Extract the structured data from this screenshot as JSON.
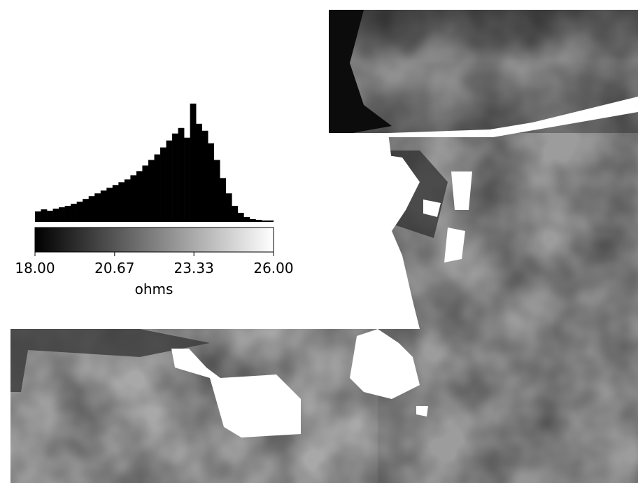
{
  "chart_data": {
    "type": "histogram",
    "bins": [
      18,
      18.2,
      18.4,
      18.6,
      18.8,
      19,
      19.2,
      19.4,
      19.6,
      19.8,
      20,
      20.2,
      20.4,
      20.6,
      20.8,
      21,
      21.2,
      21.4,
      21.6,
      21.8,
      22,
      22.2,
      22.4,
      22.6,
      22.8,
      23,
      23.2,
      23.4,
      23.6,
      23.8,
      24,
      24.2,
      24.4,
      24.6,
      24.8,
      25,
      25.2,
      25.4,
      25.6,
      25.8,
      26
    ],
    "values": [
      14,
      17,
      15,
      18,
      20,
      22,
      25,
      28,
      32,
      36,
      40,
      44,
      48,
      52,
      56,
      60,
      66,
      72,
      80,
      88,
      96,
      106,
      116,
      126,
      134,
      120,
      169,
      140,
      130,
      112,
      88,
      62,
      40,
      22,
      12,
      6,
      3,
      2,
      1,
      1
    ],
    "color": "#000000",
    "xlim": [
      18,
      26
    ],
    "ylim": [
      0,
      170
    ],
    "xticks": [
      {
        "value": 18,
        "label": "18.00"
      },
      {
        "value": 20.67,
        "label": "20.67"
      },
      {
        "value": 23.33,
        "label": "23.33"
      },
      {
        "value": 26,
        "label": "26.00"
      }
    ],
    "xlabel": "ohms",
    "colormap": [
      "#000000",
      "#ffffff"
    ]
  }
}
